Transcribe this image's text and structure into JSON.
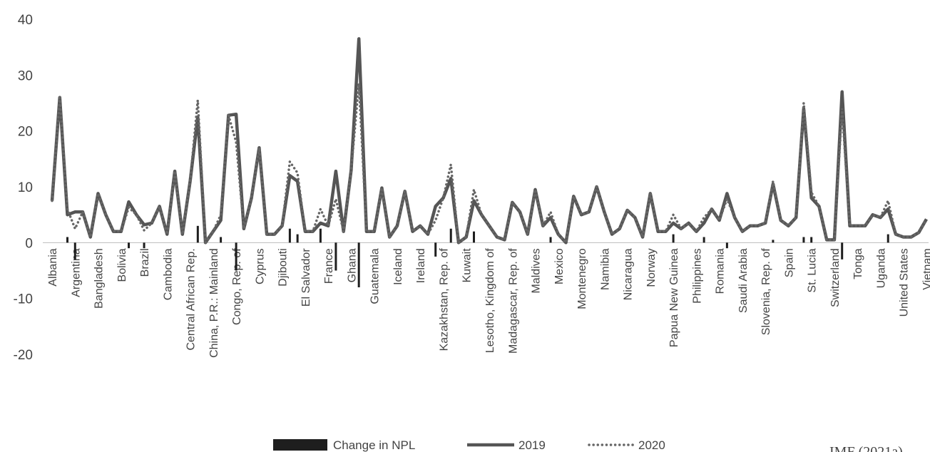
{
  "chart_data": {
    "type": "line",
    "categories": [
      "Albania",
      null,
      null,
      "Argentina",
      null,
      null,
      "Bangladesh",
      null,
      null,
      "Bolivia",
      null,
      null,
      "Brazil",
      null,
      null,
      "Cambodia",
      null,
      null,
      "Central African Rep.",
      null,
      null,
      "China, P.R.: Mainland",
      null,
      null,
      "Congo, Rep. of",
      null,
      null,
      "Cyprus",
      null,
      null,
      "Djibouti",
      null,
      null,
      "El Salvador",
      null,
      null,
      "France",
      null,
      null,
      "Ghana",
      null,
      null,
      "Guatemala",
      null,
      null,
      "Iceland",
      null,
      null,
      "Ireland",
      null,
      null,
      "Kazakhstan, Rep. of",
      null,
      null,
      "Kuwait",
      null,
      null,
      "Lesotho, Kingdom of",
      null,
      null,
      "Madagascar, Rep. of",
      null,
      null,
      "Maldives",
      null,
      null,
      "Mexico",
      null,
      null,
      "Montenegro",
      null,
      null,
      "Namibia",
      null,
      null,
      "Nicaragua",
      null,
      null,
      "Norway",
      null,
      null,
      "Papua New Guinea",
      null,
      null,
      "Philippines",
      null,
      null,
      "Romania",
      null,
      null,
      "Saudi Arabia",
      null,
      null,
      "Slovenia, Rep. of",
      null,
      null,
      "Spain",
      null,
      null,
      "St. Lucia",
      null,
      null,
      "Switzerland",
      null,
      null,
      "Tonga",
      null,
      null,
      "Uganda",
      null,
      null,
      "United States",
      null,
      null,
      "Vietnam"
    ],
    "series": [
      {
        "name": "Change in NPL",
        "type": "bar",
        "color": "#1e1e1e",
        "values": [
          0,
          0,
          1,
          -3,
          0,
          0,
          0,
          0,
          0,
          0,
          -1,
          0,
          -1,
          0,
          0,
          0,
          0,
          0,
          0,
          3,
          0,
          0,
          1,
          0,
          -5,
          0,
          0,
          0,
          0,
          0,
          0,
          2.5,
          1.5,
          0,
          0,
          2.5,
          0,
          -5,
          0,
          0,
          -8,
          0,
          0,
          0,
          0,
          0,
          0,
          0,
          0,
          0,
          -2.5,
          0,
          2.5,
          0,
          0,
          2,
          0,
          0,
          0,
          0,
          0,
          0,
          0,
          0,
          0,
          1,
          0,
          0,
          0,
          0,
          0,
          0,
          0,
          0,
          0,
          0,
          0,
          0,
          0,
          0,
          0,
          1.5,
          0,
          0,
          0,
          1,
          0,
          0,
          -1,
          0,
          0,
          0,
          0,
          0,
          0.5,
          0,
          0,
          0,
          1,
          1,
          0,
          0,
          0,
          -3,
          0,
          0,
          0,
          0,
          0,
          1.5,
          0,
          0,
          0,
          0,
          0
        ]
      },
      {
        "name": "2019",
        "type": "line",
        "color": "#555555",
        "values": [
          7.5,
          26,
          5,
          5.5,
          5.5,
          1,
          8.8,
          5,
          2,
          2,
          7.3,
          5,
          3.2,
          3.5,
          6.5,
          1.5,
          12.8,
          1.5,
          11,
          22.5,
          0,
          2,
          4,
          22.8,
          23,
          2.5,
          8,
          17,
          1.5,
          1.5,
          3,
          12,
          11,
          2,
          2,
          3.5,
          3,
          12.8,
          2,
          13,
          36.5,
          2,
          2,
          9.8,
          1,
          3,
          9.2,
          2,
          3,
          1.5,
          6.5,
          8,
          11.5,
          0,
          1,
          7.5,
          5,
          3,
          1,
          0.5,
          7.2,
          5.5,
          1.5,
          9.5,
          3,
          4.5,
          1.5,
          0,
          8.3,
          5,
          5.5,
          10,
          5.5,
          1.5,
          2.5,
          5.8,
          4.5,
          1,
          8.8,
          2,
          2,
          3.5,
          2.5,
          3.5,
          2,
          3.5,
          6,
          4,
          8.8,
          4.5,
          2,
          3,
          3,
          3.5,
          10.5,
          4,
          3,
          4.5,
          24,
          8,
          6.5,
          0.5,
          0.5,
          27,
          3,
          3,
          3,
          5,
          4.5,
          6,
          1.5,
          1,
          1,
          1.8,
          4.2
        ]
      },
      {
        "name": "2020",
        "type": "dotted",
        "color": "#666666",
        "values": [
          7.5,
          26,
          6,
          2.5,
          5.5,
          1,
          8.8,
          5,
          2,
          2,
          6.3,
          5,
          2.2,
          3.5,
          6.5,
          1.5,
          12.8,
          1.5,
          11,
          25.5,
          0,
          2,
          5,
          22.8,
          18,
          2.5,
          8,
          17,
          1.5,
          1.5,
          3,
          14.5,
          12.5,
          2,
          2,
          6,
          3,
          7.8,
          2,
          13,
          28.5,
          2,
          2,
          9.8,
          1,
          3,
          9.2,
          2,
          3,
          1.5,
          4,
          8,
          14,
          0,
          1,
          9.5,
          5,
          3,
          1,
          0.5,
          7.2,
          5.5,
          1.5,
          9.5,
          3,
          5.5,
          1.5,
          0,
          8.3,
          5,
          5.5,
          10,
          5.5,
          1.5,
          2.5,
          5.8,
          4.5,
          1,
          8.8,
          2,
          2,
          5,
          2.5,
          3.5,
          2,
          4.5,
          6,
          4,
          7.8,
          4.5,
          2,
          3,
          3,
          3.5,
          11,
          4,
          3,
          4.5,
          25,
          9,
          6.5,
          0.5,
          0.5,
          24,
          3,
          3,
          3,
          5,
          4.5,
          7.5,
          1.5,
          1,
          1,
          1.8,
          4.2
        ]
      }
    ],
    "ylim": [
      -20,
      40
    ],
    "yticks": [
      -20,
      -10,
      0,
      10,
      20,
      30,
      40
    ],
    "grid": false,
    "legend": "bottom",
    "source": "IMF (2021a)"
  }
}
